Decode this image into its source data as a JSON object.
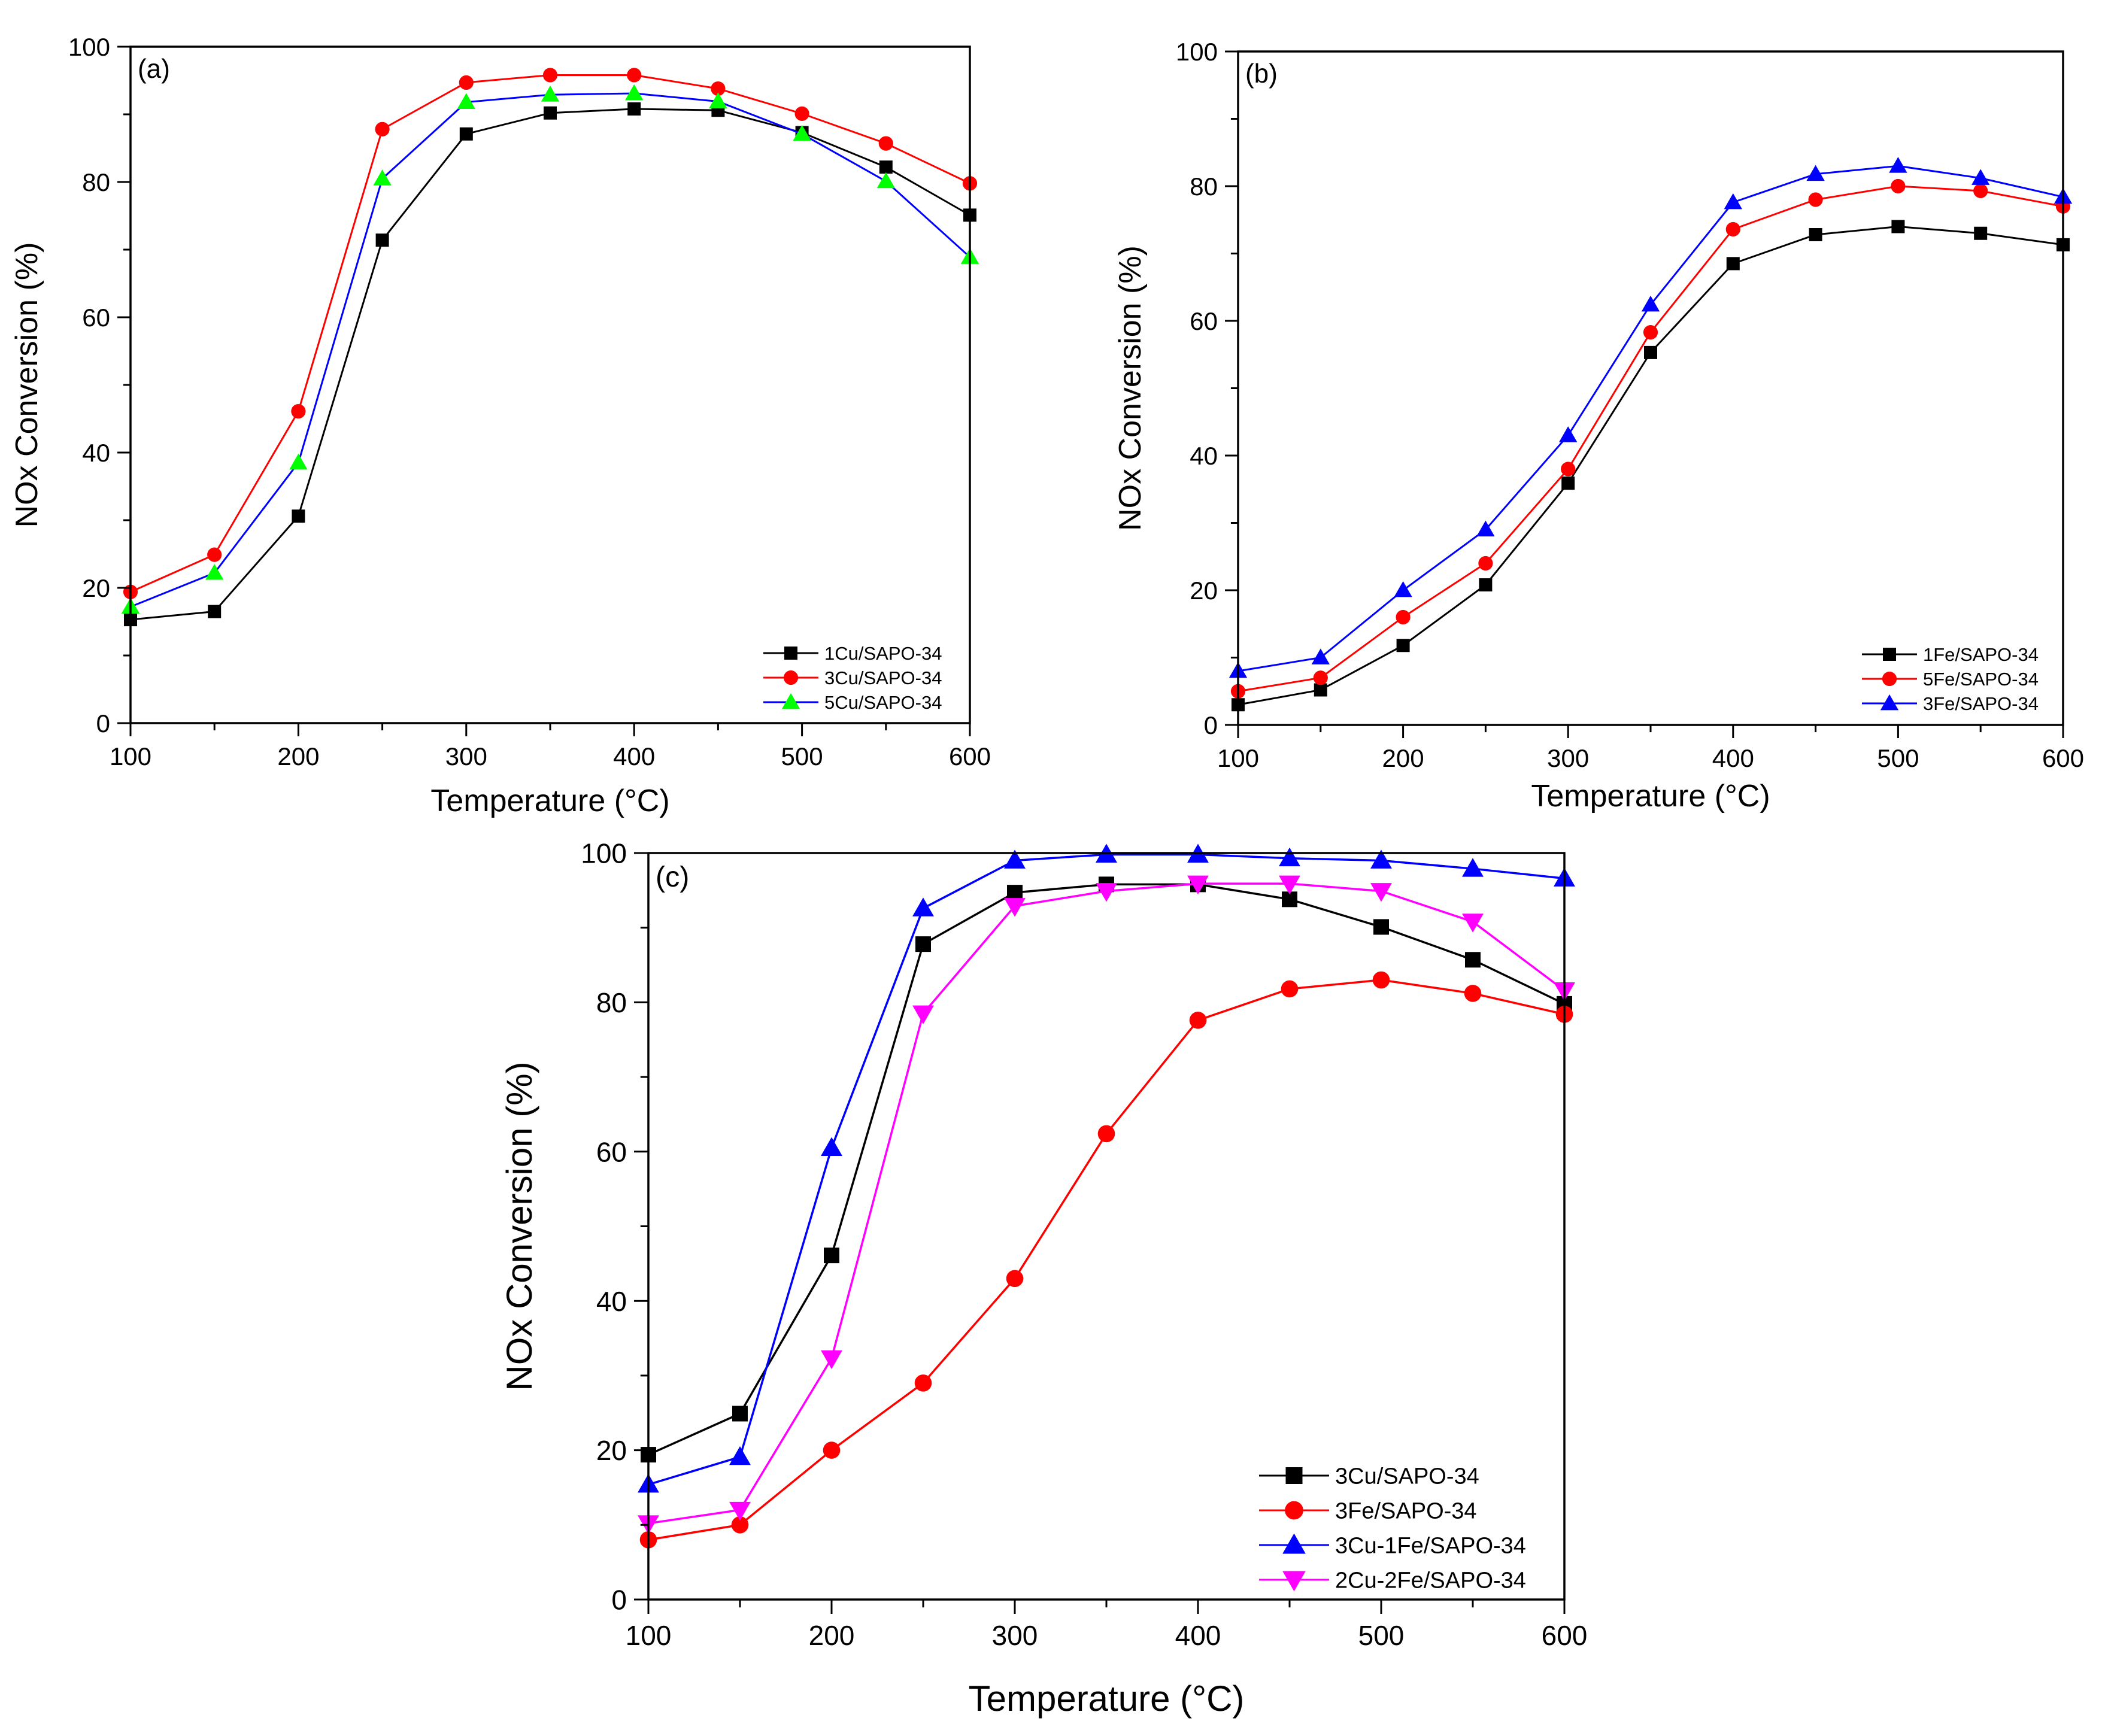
{
  "chart_data": [
    {
      "type": "line",
      "panel_label": "(a)",
      "xlabel": "Temperature (°C)",
      "ylabel": "NOx Conversion (%)",
      "xlim": [
        100,
        600
      ],
      "ylim": [
        0,
        100
      ],
      "xticks": [
        100,
        200,
        300,
        400,
        500,
        600
      ],
      "yticks": [
        0,
        20,
        40,
        60,
        80,
        100
      ],
      "x": [
        100,
        150,
        200,
        250,
        300,
        350,
        400,
        450,
        500,
        550,
        600
      ],
      "legend_position": "bottom-right",
      "series": [
        {
          "name": "1Cu/SAPO-34",
          "color": "#000000",
          "marker": "square",
          "values": [
            15.3,
            16.5,
            30.6,
            71.4,
            87.1,
            90.2,
            90.8,
            90.6,
            87.3,
            82.2,
            75.1
          ]
        },
        {
          "name": "3Cu/SAPO-34",
          "color": "#ff0000",
          "marker": "circle",
          "values": [
            19.4,
            24.9,
            46.1,
            87.8,
            94.7,
            95.8,
            95.8,
            93.8,
            90.1,
            85.7,
            79.8
          ]
        },
        {
          "name": "5Cu/SAPO-34",
          "color": "#0000ff",
          "marker": "triangle-up",
          "marker_color": "#00ff00",
          "values": [
            17.2,
            22.2,
            38.5,
            80.5,
            91.8,
            92.9,
            93.1,
            91.9,
            87.1,
            80.1,
            68.9
          ]
        }
      ]
    },
    {
      "type": "line",
      "panel_label": "(b)",
      "xlabel": "Temperature (°C)",
      "ylabel": "NOx Conversion (%)",
      "xlim": [
        100,
        600
      ],
      "ylim": [
        0,
        100
      ],
      "xticks": [
        100,
        200,
        300,
        400,
        500,
        600
      ],
      "yticks": [
        0,
        20,
        40,
        60,
        80,
        100
      ],
      "x": [
        100,
        150,
        200,
        250,
        300,
        350,
        400,
        450,
        500,
        550,
        600
      ],
      "legend_position": "bottom-right",
      "series": [
        {
          "name": "1Fe/SAPO-34",
          "color": "#000000",
          "marker": "square",
          "values": [
            3.0,
            5.2,
            11.8,
            20.8,
            35.9,
            55.3,
            68.5,
            72.8,
            74.0,
            73.0,
            71.3
          ]
        },
        {
          "name": "5Fe/SAPO-34",
          "color": "#ff0000",
          "marker": "circle",
          "values": [
            5.0,
            7.0,
            16.0,
            24.0,
            38.0,
            58.3,
            73.6,
            78.0,
            80.0,
            79.3,
            77.0
          ]
        },
        {
          "name": "3Fe/SAPO-34",
          "color": "#0000ff",
          "marker": "triangle-up",
          "values": [
            8.0,
            10.0,
            20.0,
            29.0,
            43.0,
            62.4,
            77.6,
            81.8,
            83.0,
            81.2,
            78.4
          ]
        }
      ]
    },
    {
      "type": "line",
      "panel_label": "(c)",
      "xlabel": "Temperature (°C)",
      "ylabel": "NOx Conversion (%)",
      "xlim": [
        100,
        600
      ],
      "ylim": [
        0,
        100
      ],
      "xticks": [
        100,
        200,
        300,
        400,
        500,
        600
      ],
      "yticks": [
        0,
        20,
        40,
        60,
        80,
        100
      ],
      "x": [
        100,
        150,
        200,
        250,
        300,
        350,
        400,
        450,
        500,
        550,
        600
      ],
      "legend_position": "bottom-right",
      "series": [
        {
          "name": "3Cu/SAPO-34",
          "color": "#000000",
          "marker": "square",
          "values": [
            19.4,
            24.9,
            46.1,
            87.8,
            94.7,
            95.8,
            95.8,
            93.8,
            90.1,
            85.7,
            79.8
          ]
        },
        {
          "name": "3Fe/SAPO-34",
          "color": "#ff0000",
          "marker": "circle",
          "values": [
            8.0,
            10.0,
            20.0,
            29.0,
            43.0,
            62.4,
            77.6,
            81.8,
            83.0,
            81.2,
            78.4
          ]
        },
        {
          "name": "3Cu-1Fe/SAPO-34",
          "color": "#0000ff",
          "marker": "triangle-up",
          "values": [
            15.4,
            19.1,
            60.5,
            92.6,
            99.0,
            99.8,
            99.8,
            99.3,
            99.0,
            97.9,
            96.6
          ]
        },
        {
          "name": "2Cu-2Fe/SAPO-34",
          "color": "#ff00ff",
          "marker": "triangle-down",
          "values": [
            10.2,
            12.0,
            32.3,
            78.5,
            92.9,
            94.9,
            95.9,
            95.9,
            94.9,
            90.8,
            81.6
          ]
        }
      ]
    }
  ]
}
